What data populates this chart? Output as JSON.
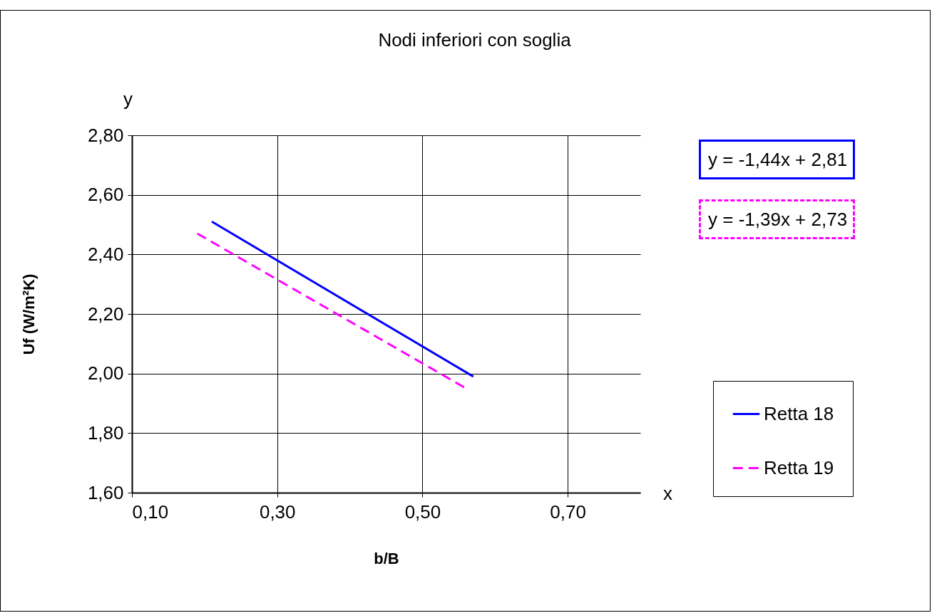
{
  "chart_data": {
    "type": "line",
    "title": "Nodi inferiori con soglia",
    "xlabel": "b/B",
    "ylabel": "Uf (W/m²K)",
    "series": [
      {
        "name": "Retta 18",
        "color": "#0000ff",
        "line_style": "solid",
        "x": [
          0.21,
          0.57
        ],
        "values": [
          2.51,
          1.99
        ]
      },
      {
        "name": "Retta 19",
        "color": "#ff00ff",
        "line_style": "dashed",
        "x": [
          0.19,
          0.56
        ],
        "values": [
          2.47,
          1.95
        ]
      }
    ],
    "xlim": [
      0.1,
      0.8
    ],
    "xticks": [
      {
        "value": 0.1,
        "label": "0,10"
      },
      {
        "value": 0.3,
        "label": "0,30"
      },
      {
        "value": 0.5,
        "label": "0,50"
      },
      {
        "value": 0.7,
        "label": "0,70"
      }
    ],
    "ylim": [
      1.6,
      2.8
    ],
    "yticks": [
      {
        "value": 1.6,
        "label": "1,60"
      },
      {
        "value": 1.8,
        "label": "1,80"
      },
      {
        "value": 2.0,
        "label": "2,00"
      },
      {
        "value": 2.2,
        "label": "2,20"
      },
      {
        "value": 2.4,
        "label": "2,40"
      },
      {
        "value": 2.6,
        "label": "2,60"
      },
      {
        "value": 2.8,
        "label": "2,80"
      }
    ],
    "grid": true,
    "legend": "right",
    "marker": "none",
    "annotations": [
      "y",
      "x",
      "y = -1,44x + 2,81",
      "y = -1,39x + 2,73"
    ]
  }
}
